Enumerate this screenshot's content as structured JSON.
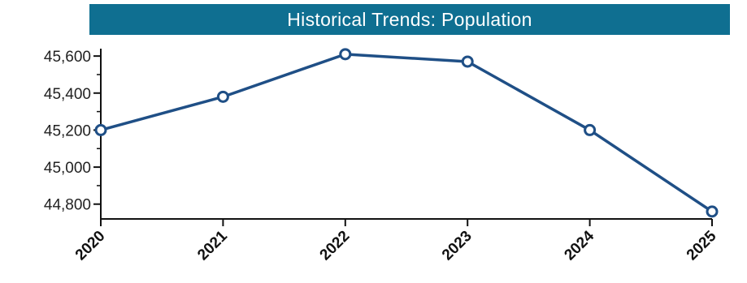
{
  "chart_data": {
    "type": "line",
    "title": "Historical Trends: Population",
    "xlabel": "",
    "ylabel": "",
    "categories": [
      "2020",
      "2021",
      "2022",
      "2023",
      "2024",
      "2025"
    ],
    "series": [
      {
        "values": [
          45200,
          45380,
          45610,
          45570,
          45200,
          44760
        ]
      }
    ],
    "ylim": [
      44720,
      45640
    ],
    "yticks": [
      44800,
      45000,
      45200,
      45400,
      45600
    ],
    "ytick_labels": [
      "44,800",
      "45,000",
      "45,200",
      "45,400",
      "45,600"
    ],
    "grid": false,
    "legend": "none",
    "colors": {
      "banner": "#0f6f91",
      "line": "#1f4f86",
      "axis": "#111111"
    }
  }
}
